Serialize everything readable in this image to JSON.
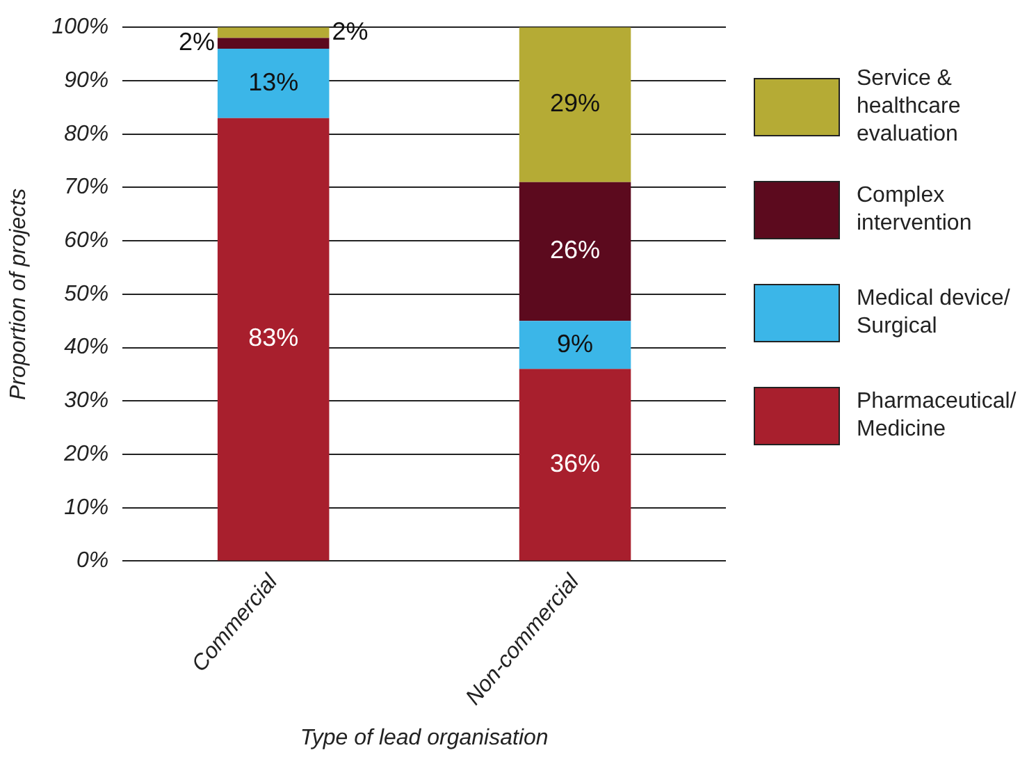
{
  "chart_data": {
    "type": "bar",
    "stacked": true,
    "xlabel": "Type of lead organisation",
    "ylabel": "Proportion of projects",
    "categories": [
      "Commercial",
      "Non-commercial"
    ],
    "series": [
      {
        "name": "Pharmaceutical/ Medicine",
        "color": "#a81f2d",
        "values": [
          83,
          36
        ],
        "value_labels": [
          "83%",
          "36%"
        ]
      },
      {
        "name": "Medical device/ Surgical",
        "color": "#3bb6e8",
        "values": [
          13,
          9
        ],
        "value_labels": [
          "13%",
          "9%"
        ]
      },
      {
        "name": "Complex intervention",
        "color": "#5c0a1e",
        "values": [
          2,
          26
        ],
        "value_labels": [
          "2%",
          "26%"
        ]
      },
      {
        "name": "Service & healthcare evaluation",
        "color": "#b5ab35",
        "values": [
          2,
          29
        ],
        "value_labels": [
          "2%",
          "29%"
        ]
      }
    ],
    "ylim": [
      0,
      100
    ],
    "yticks": [
      {
        "value": 0,
        "label": "0%"
      },
      {
        "value": 10,
        "label": "10%"
      },
      {
        "value": 20,
        "label": "20%"
      },
      {
        "value": 30,
        "label": "30%"
      },
      {
        "value": 40,
        "label": "40%"
      },
      {
        "value": 50,
        "label": "50%"
      },
      {
        "value": 60,
        "label": "60%"
      },
      {
        "value": 70,
        "label": "70%"
      },
      {
        "value": 80,
        "label": "80%"
      },
      {
        "value": 90,
        "label": "90%"
      },
      {
        "value": 100,
        "label": "100%"
      }
    ],
    "grid": "y",
    "legend": "right"
  }
}
